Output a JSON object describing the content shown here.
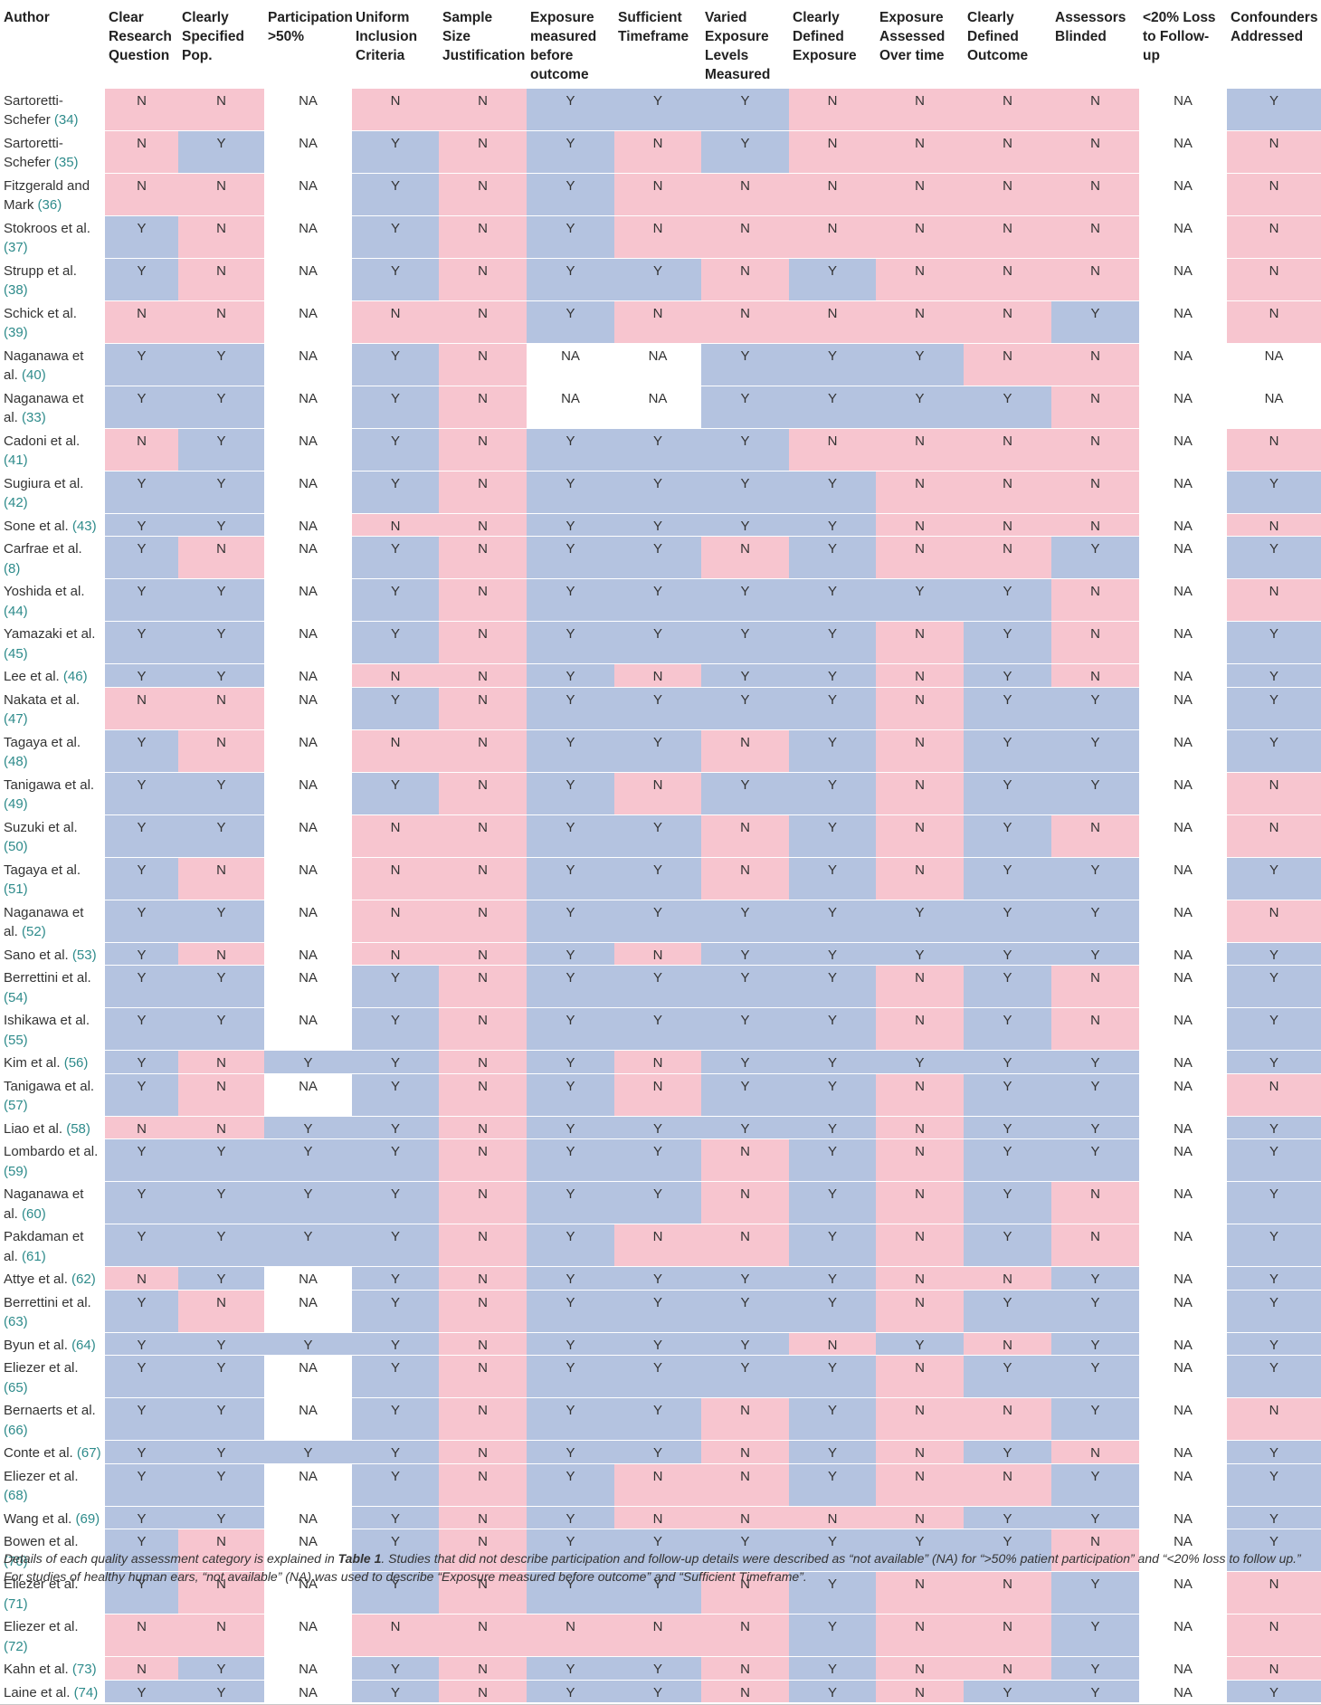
{
  "headers": [
    "Author",
    "Clear Research Question",
    "Clearly Specified Pop.",
    "Participation >50%",
    "Uniform Inclusion Criteria",
    "Sample Size Justification",
    "Exposure measured before outcome",
    "Sufficient Timeframe",
    "Varied Exposure Levels Measured",
    "Clearly Defined Exposure",
    "Exposure Assessed Over time",
    "Clearly Defined Outcome",
    "Assessors Blinded",
    "<20% Loss to Follow-up",
    "Confounders Addressed"
  ],
  "rows": [
    {
      "author": "Sartoretti-Schefer",
      "ref": "(34)",
      "cells": [
        "N",
        "N",
        "NA",
        "N",
        "N",
        "Y",
        "Y",
        "Y",
        "N",
        "N",
        "N",
        "N",
        "NA",
        "Y"
      ]
    },
    {
      "author": "Sartoretti-Schefer",
      "ref": "(35)",
      "cells": [
        "N",
        "Y",
        "NA",
        "Y",
        "N",
        "Y",
        "N",
        "Y",
        "N",
        "N",
        "N",
        "N",
        "NA",
        "N"
      ]
    },
    {
      "author": "Fitzgerald and Mark",
      "ref": "(36)",
      "cells": [
        "N",
        "N",
        "NA",
        "Y",
        "N",
        "Y",
        "N",
        "N",
        "N",
        "N",
        "N",
        "N",
        "NA",
        "N"
      ]
    },
    {
      "author": "Stokroos et al.",
      "ref": "(37)",
      "cells": [
        "Y",
        "N",
        "NA",
        "Y",
        "N",
        "Y",
        "N",
        "N",
        "N",
        "N",
        "N",
        "N",
        "NA",
        "N"
      ]
    },
    {
      "author": "Strupp et al.",
      "ref": "(38)",
      "cells": [
        "Y",
        "N",
        "NA",
        "Y",
        "N",
        "Y",
        "Y",
        "N",
        "Y",
        "N",
        "N",
        "N",
        "NA",
        "N"
      ]
    },
    {
      "author": "Schick et al.",
      "ref": "(39)",
      "cells": [
        "N",
        "N",
        "NA",
        "N",
        "N",
        "Y",
        "N",
        "N",
        "N",
        "N",
        "N",
        "Y",
        "NA",
        "N"
      ]
    },
    {
      "author": "Naganawa et al.",
      "ref": "(40)",
      "cells": [
        "Y",
        "Y",
        "NA",
        "Y",
        "N",
        "NA",
        "NA",
        "Y",
        "Y",
        "Y",
        "N",
        "N",
        "NA",
        "NA"
      ]
    },
    {
      "author": "Naganawa et al.",
      "ref": "(33)",
      "cells": [
        "Y",
        "Y",
        "NA",
        "Y",
        "N",
        "NA",
        "NA",
        "Y",
        "Y",
        "Y",
        "Y",
        "N",
        "NA",
        "NA"
      ]
    },
    {
      "author": "Cadoni et al.",
      "ref": "(41)",
      "cells": [
        "N",
        "Y",
        "NA",
        "Y",
        "N",
        "Y",
        "Y",
        "Y",
        "N",
        "N",
        "N",
        "N",
        "NA",
        "N"
      ]
    },
    {
      "author": "Sugiura et al.",
      "ref": "(42)",
      "cells": [
        "Y",
        "Y",
        "NA",
        "Y",
        "N",
        "Y",
        "Y",
        "Y",
        "Y",
        "N",
        "N",
        "N",
        "NA",
        "Y"
      ]
    },
    {
      "author": "Sone et al.",
      "ref": "(43)",
      "cells": [
        "Y",
        "Y",
        "NA",
        "N",
        "N",
        "Y",
        "Y",
        "Y",
        "Y",
        "N",
        "N",
        "N",
        "NA",
        "N"
      ]
    },
    {
      "author": "Carfrae et al.",
      "ref": "(8)",
      "cells": [
        "Y",
        "N",
        "NA",
        "Y",
        "N",
        "Y",
        "Y",
        "N",
        "Y",
        "N",
        "N",
        "Y",
        "NA",
        "Y"
      ]
    },
    {
      "author": "Yoshida et al.",
      "ref": "(44)",
      "cells": [
        "Y",
        "Y",
        "NA",
        "Y",
        "N",
        "Y",
        "Y",
        "Y",
        "Y",
        "Y",
        "Y",
        "N",
        "NA",
        "N"
      ]
    },
    {
      "author": "Yamazaki et al.",
      "ref": "(45)",
      "cells": [
        "Y",
        "Y",
        "NA",
        "Y",
        "N",
        "Y",
        "Y",
        "Y",
        "Y",
        "N",
        "Y",
        "N",
        "NA",
        "Y"
      ]
    },
    {
      "author": "Lee et al.",
      "ref": "(46)",
      "cells": [
        "Y",
        "Y",
        "NA",
        "N",
        "N",
        "Y",
        "N",
        "Y",
        "Y",
        "N",
        "Y",
        "N",
        "NA",
        "Y"
      ]
    },
    {
      "author": "Nakata et al.",
      "ref": "(47)",
      "cells": [
        "N",
        "N",
        "NA",
        "Y",
        "N",
        "Y",
        "Y",
        "Y",
        "Y",
        "N",
        "Y",
        "Y",
        "NA",
        "Y"
      ]
    },
    {
      "author": "Tagaya et al.",
      "ref": "(48)",
      "cells": [
        "Y",
        "N",
        "NA",
        "N",
        "N",
        "Y",
        "Y",
        "N",
        "Y",
        "N",
        "Y",
        "Y",
        "NA",
        "Y"
      ]
    },
    {
      "author": "Tanigawa et al.",
      "ref": "(49)",
      "cells": [
        "Y",
        "Y",
        "NA",
        "Y",
        "N",
        "Y",
        "N",
        "Y",
        "Y",
        "N",
        "Y",
        "Y",
        "NA",
        "N"
      ]
    },
    {
      "author": "Suzuki et al.",
      "ref": "(50)",
      "cells": [
        "Y",
        "Y",
        "NA",
        "N",
        "N",
        "Y",
        "Y",
        "N",
        "Y",
        "N",
        "Y",
        "N",
        "NA",
        "N"
      ]
    },
    {
      "author": "Tagaya et al.",
      "ref": "(51)",
      "cells": [
        "Y",
        "N",
        "NA",
        "N",
        "N",
        "Y",
        "Y",
        "N",
        "Y",
        "N",
        "Y",
        "Y",
        "NA",
        "Y"
      ]
    },
    {
      "author": "Naganawa et al.",
      "ref": "(52)",
      "cells": [
        "Y",
        "Y",
        "NA",
        "N",
        "N",
        "Y",
        "Y",
        "Y",
        "Y",
        "Y",
        "Y",
        "Y",
        "NA",
        "N"
      ]
    },
    {
      "author": "Sano et al.",
      "ref": "(53)",
      "cells": [
        "Y",
        "N",
        "NA",
        "N",
        "N",
        "Y",
        "N",
        "Y",
        "Y",
        "Y",
        "Y",
        "Y",
        "NA",
        "Y"
      ]
    },
    {
      "author": "Berrettini et al.",
      "ref": "(54)",
      "cells": [
        "Y",
        "Y",
        "NA",
        "Y",
        "N",
        "Y",
        "Y",
        "Y",
        "Y",
        "N",
        "Y",
        "N",
        "NA",
        "Y"
      ]
    },
    {
      "author": "Ishikawa et al.",
      "ref": "(55)",
      "cells": [
        "Y",
        "Y",
        "NA",
        "Y",
        "N",
        "Y",
        "Y",
        "Y",
        "Y",
        "N",
        "Y",
        "N",
        "NA",
        "Y"
      ]
    },
    {
      "author": "Kim et al.",
      "ref": "(56)",
      "cells": [
        "Y",
        "N",
        "Y",
        "Y",
        "N",
        "Y",
        "N",
        "Y",
        "Y",
        "Y",
        "Y",
        "Y",
        "NA",
        "Y"
      ]
    },
    {
      "author": "Tanigawa et al.",
      "ref": "(57)",
      "cells": [
        "Y",
        "N",
        "NA",
        "Y",
        "N",
        "Y",
        "N",
        "Y",
        "Y",
        "N",
        "Y",
        "Y",
        "NA",
        "N"
      ]
    },
    {
      "author": "Liao et al.",
      "ref": "(58)",
      "cells": [
        "N",
        "N",
        "Y",
        "Y",
        "N",
        "Y",
        "Y",
        "Y",
        "Y",
        "N",
        "Y",
        "Y",
        "NA",
        "Y"
      ]
    },
    {
      "author": "Lombardo et al.",
      "ref": "(59)",
      "cells": [
        "Y",
        "Y",
        "Y",
        "Y",
        "N",
        "Y",
        "Y",
        "N",
        "Y",
        "N",
        "Y",
        "Y",
        "NA",
        "Y"
      ]
    },
    {
      "author": "Naganawa et al.",
      "ref": "(60)",
      "cells": [
        "Y",
        "Y",
        "Y",
        "Y",
        "N",
        "Y",
        "Y",
        "N",
        "Y",
        "N",
        "Y",
        "N",
        "NA",
        "Y"
      ]
    },
    {
      "author": "Pakdaman et al.",
      "ref": "(61)",
      "cells": [
        "Y",
        "Y",
        "Y",
        "Y",
        "N",
        "Y",
        "N",
        "N",
        "Y",
        "N",
        "Y",
        "N",
        "NA",
        "Y"
      ]
    },
    {
      "author": "Attye et al.",
      "ref": "(62)",
      "cells": [
        "N",
        "Y",
        "NA",
        "Y",
        "N",
        "Y",
        "Y",
        "Y",
        "Y",
        "N",
        "N",
        "Y",
        "NA",
        "Y"
      ]
    },
    {
      "author": "Berrettini et al.",
      "ref": "(63)",
      "cells": [
        "Y",
        "N",
        "NA",
        "Y",
        "N",
        "Y",
        "Y",
        "Y",
        "Y",
        "N",
        "Y",
        "Y",
        "NA",
        "Y"
      ]
    },
    {
      "author": "Byun et al.",
      "ref": "(64)",
      "cells": [
        "Y",
        "Y",
        "Y",
        "Y",
        "N",
        "Y",
        "Y",
        "Y",
        "N",
        "Y",
        "N",
        "Y",
        "NA",
        "Y"
      ]
    },
    {
      "author": "Eliezer et al.",
      "ref": "(65)",
      "cells": [
        "Y",
        "Y",
        "NA",
        "Y",
        "N",
        "Y",
        "Y",
        "Y",
        "Y",
        "N",
        "Y",
        "Y",
        "NA",
        "Y"
      ]
    },
    {
      "author": "Bernaerts et al.",
      "ref": "(66)",
      "cells": [
        "Y",
        "Y",
        "NA",
        "Y",
        "N",
        "Y",
        "Y",
        "N",
        "Y",
        "N",
        "N",
        "Y",
        "NA",
        "N"
      ]
    },
    {
      "author": "Conte et al.",
      "ref": "(67)",
      "cells": [
        "Y",
        "Y",
        "Y",
        "Y",
        "N",
        "Y",
        "Y",
        "N",
        "Y",
        "N",
        "Y",
        "N",
        "NA",
        "Y"
      ]
    },
    {
      "author": "Eliezer et al.",
      "ref": "(68)",
      "cells": [
        "Y",
        "Y",
        "NA",
        "Y",
        "N",
        "Y",
        "N",
        "N",
        "Y",
        "N",
        "N",
        "Y",
        "NA",
        "Y"
      ]
    },
    {
      "author": "Wang et al.",
      "ref": "(69)",
      "cells": [
        "Y",
        "Y",
        "NA",
        "Y",
        "N",
        "Y",
        "N",
        "N",
        "N",
        "N",
        "Y",
        "Y",
        "NA",
        "Y"
      ]
    },
    {
      "author": "Bowen et al.",
      "ref": "(70)",
      "cells": [
        "Y",
        "N",
        "NA",
        "Y",
        "N",
        "Y",
        "Y",
        "Y",
        "Y",
        "Y",
        "Y",
        "N",
        "NA",
        "Y"
      ]
    },
    {
      "author": "Eliezer et al.",
      "ref": "(71)",
      "cells": [
        "Y",
        "N",
        "NA",
        "Y",
        "N",
        "Y",
        "Y",
        "N",
        "Y",
        "N",
        "N",
        "Y",
        "NA",
        "N"
      ]
    },
    {
      "author": "Eliezer et al.",
      "ref": "(72)",
      "cells": [
        "N",
        "N",
        "NA",
        "N",
        "N",
        "N",
        "N",
        "N",
        "Y",
        "N",
        "N",
        "Y",
        "NA",
        "N"
      ]
    },
    {
      "author": "Kahn et al.",
      "ref": "(73)",
      "cells": [
        "N",
        "Y",
        "NA",
        "Y",
        "N",
        "Y",
        "Y",
        "N",
        "Y",
        "N",
        "N",
        "Y",
        "NA",
        "N"
      ]
    },
    {
      "author": "Laine et al.",
      "ref": "(74)",
      "cells": [
        "Y",
        "Y",
        "NA",
        "Y",
        "N",
        "Y",
        "Y",
        "N",
        "Y",
        "N",
        "Y",
        "Y",
        "NA",
        "Y"
      ]
    }
  ],
  "footnote": {
    "part1": "Details of each quality assessment category is explained in ",
    "table_ref": "Table 1",
    "part2": ". Studies that did not describe participation and follow-up details were described as “not available” (NA) for “>50% patient participation” and “<20% loss to follow up.” For studies of healthy human ears, “not available” (NA) was used to describe “Exposure measured before outcome” and “Sufficient Timeframe”."
  },
  "colors": {
    "yes": "#b4c3e0",
    "no": "#f7c5cf",
    "na": "#ffffff",
    "ref_link": "#2e8b8b"
  }
}
